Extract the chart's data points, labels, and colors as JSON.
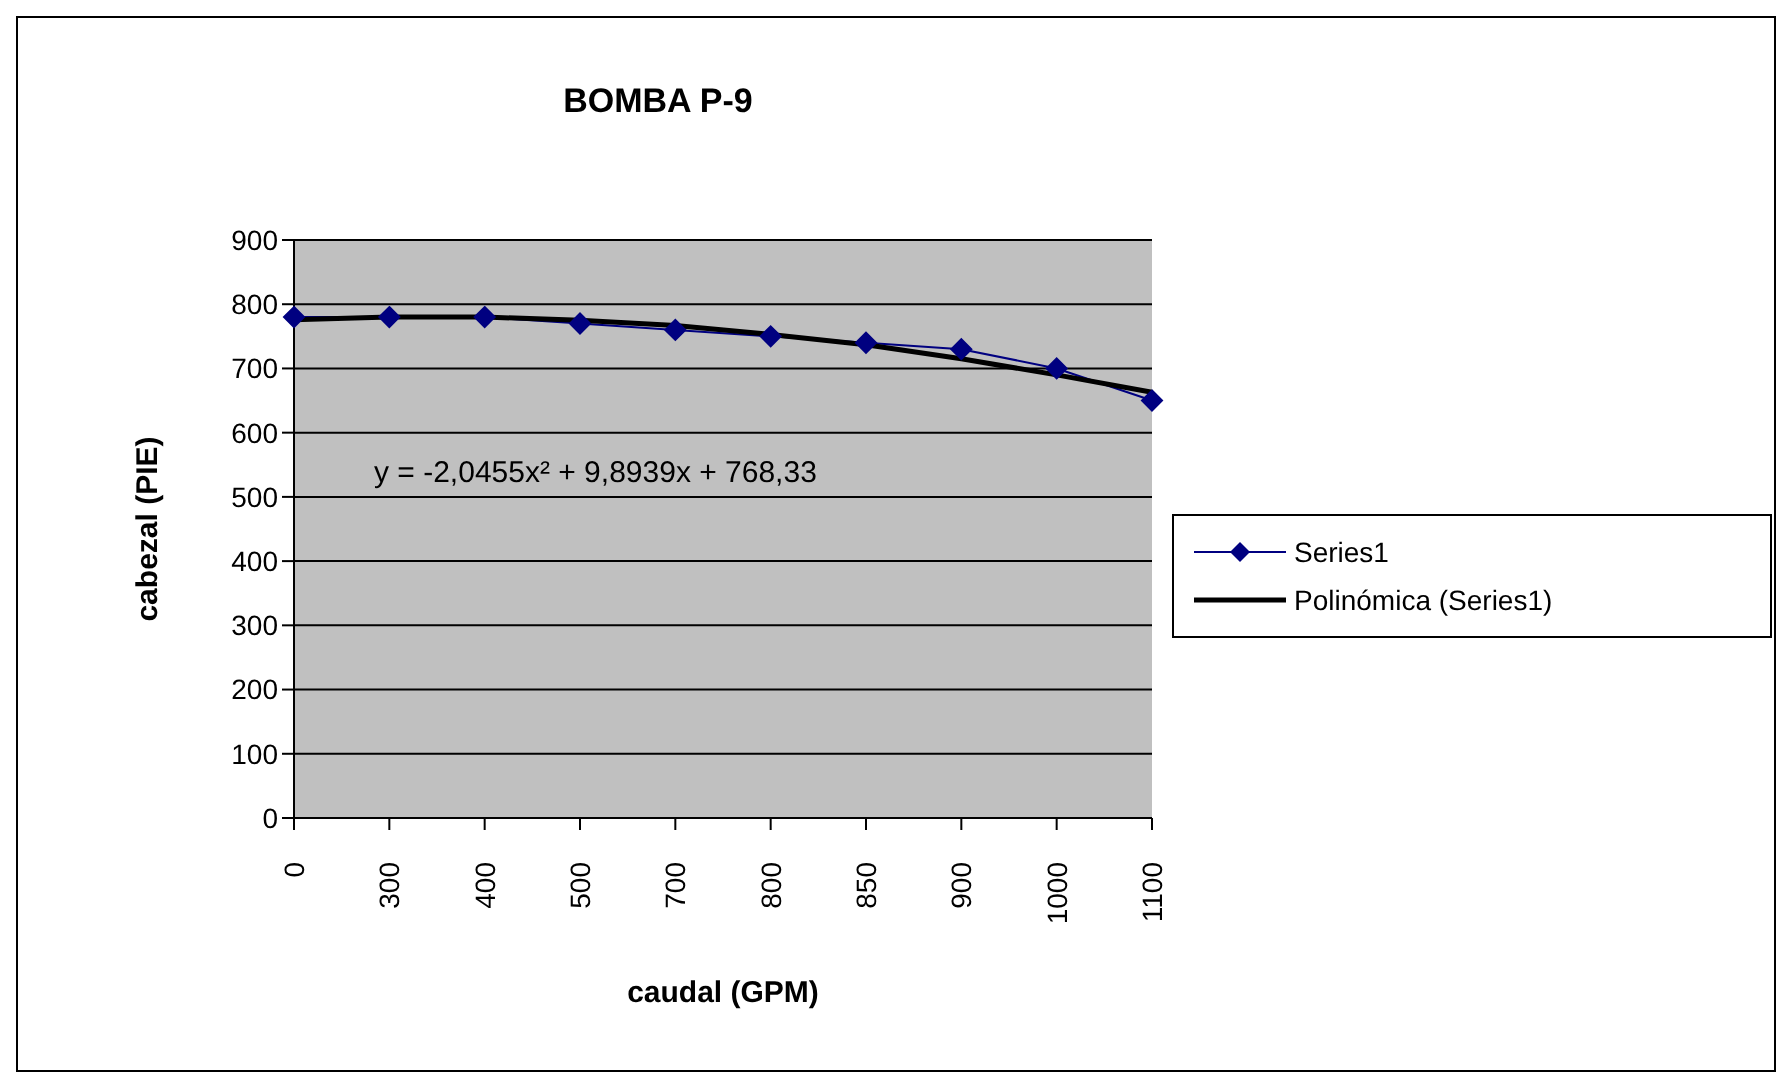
{
  "chart_data": {
    "type": "line",
    "title": "BOMBA P-9",
    "xlabel": "caudal (GPM)",
    "ylabel": "cabezal (PIE)",
    "categories": [
      "0",
      "300",
      "400",
      "500",
      "700",
      "800",
      "850",
      "900",
      "1000",
      "1100"
    ],
    "series": [
      {
        "name": "Series1",
        "color": "#000080",
        "marker": "diamond",
        "values": [
          780,
          780,
          780,
          770,
          760,
          750,
          740,
          730,
          700,
          650
        ]
      },
      {
        "name": "Polinómica (Series1)",
        "type": "line",
        "color": "#000000",
        "marker": "none",
        "values": [
          776,
          780,
          780,
          775,
          767,
          753,
          737,
          715,
          690,
          663
        ]
      }
    ],
    "ylim": [
      0,
      900
    ],
    "yticks": [
      0,
      100,
      200,
      300,
      400,
      500,
      600,
      700,
      800,
      900
    ],
    "grid": "y",
    "legend": "right",
    "annotations": [
      "y = -2,0455x² + 9,8939x + 768,33"
    ]
  }
}
